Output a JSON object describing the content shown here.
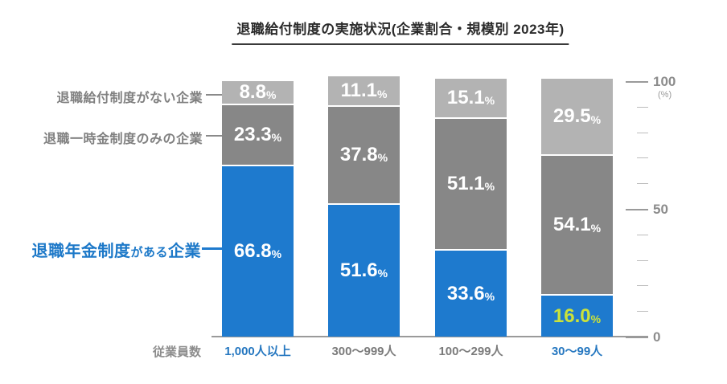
{
  "title": "退職給付制度の実施状況(企業割合・規模別 2023年)",
  "left_labels": {
    "no_system": "退職給付制度がない企業",
    "lump_sum_only": "退職一時金制度のみの企業",
    "pension": {
      "head": "退職年金制度",
      "small": "がある",
      "tail": "企業"
    }
  },
  "x_axis": {
    "label": "従業員数"
  },
  "y_axis": {
    "unit": "(%)",
    "tick_labels": [
      "0",
      "50",
      "100"
    ]
  },
  "chart_data": {
    "type": "bar",
    "stacked": true,
    "value_suffix": "%",
    "categories": [
      "1,000人以上",
      "300〜999人",
      "100〜299人",
      "30〜99人"
    ],
    "category_axis_label": "従業員数",
    "emphasized_category_indexes": [
      0,
      3
    ],
    "series": [
      {
        "name": "退職年金制度がある企業",
        "color": "#1e7ace",
        "values": [
          66.8,
          51.6,
          33.6,
          16.0
        ]
      },
      {
        "name": "退職一時金制度のみの企業",
        "color": "#878787",
        "values": [
          23.3,
          37.8,
          51.1,
          54.1
        ]
      },
      {
        "name": "退職給付制度がない企業",
        "color": "#b3b3b3",
        "values": [
          8.8,
          11.1,
          15.1,
          29.5
        ]
      }
    ],
    "stack_order": "bottom-to-top",
    "ylim": [
      0,
      100
    ],
    "y_ticks": [
      0,
      50,
      100
    ],
    "y_minor_tick_step": 10,
    "highlight": {
      "category_index": 3,
      "series_index": 0,
      "value_color": "#cbe23a"
    },
    "colors": {
      "emphasized_category_label": "#2577c0",
      "normal_category_label": "#7b7b7b",
      "value_label": "#ffffff"
    }
  }
}
